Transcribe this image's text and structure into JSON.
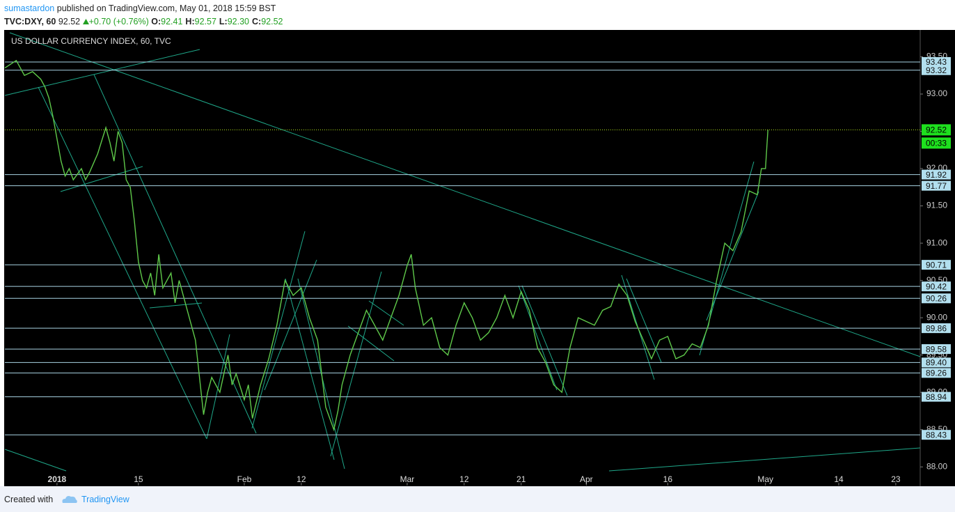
{
  "header": {
    "author": "sumastardon",
    "published": "published on TradingView.com, May 01, 2018 15:59 BST",
    "symbol": "TVC:DXY, 60",
    "last": "92.52",
    "change": "+0.70 (+0.76%)",
    "ohlc": [
      {
        "label": "O:",
        "value": "92.41"
      },
      {
        "label": "H:",
        "value": "92.57"
      },
      {
        "label": "L:",
        "value": "92.30"
      },
      {
        "label": "C:",
        "value": "92.52"
      }
    ]
  },
  "chart_data": {
    "type": "line",
    "title": "US DOLLAR CURRENCY INDEX, 60, TVC",
    "x": [
      -6.4,
      -5,
      -4,
      -3,
      -2,
      -1.5,
      -1,
      -0.5,
      0,
      0.5,
      1,
      1.5,
      2,
      3,
      3.5,
      4,
      5,
      6,
      6.5,
      7,
      7.5,
      8,
      8.5,
      9,
      9.5,
      10,
      10.5,
      11,
      11.5,
      12,
      12.5,
      13,
      14,
      14.5,
      15,
      16,
      17,
      17.5,
      18,
      18.5,
      19,
      20,
      21,
      21.5,
      22,
      23,
      23.5,
      24,
      25,
      26,
      27,
      28,
      29,
      30,
      31,
      32,
      33,
      34,
      34.5,
      35,
      36,
      37,
      38,
      39,
      40,
      41,
      42,
      43,
      43.5,
      44,
      45,
      46,
      47,
      48,
      49,
      50,
      51,
      52,
      53,
      54,
      55,
      56,
      57,
      58,
      59,
      60,
      61,
      62,
      63,
      64,
      65,
      66,
      67,
      68,
      69,
      70,
      71,
      72,
      73,
      74,
      75,
      76,
      77,
      78,
      79,
      80,
      81,
      82,
      83,
      84,
      85,
      86,
      86.5,
      87,
      87.3
    ],
    "series": [
      {
        "color": "#5fc94a",
        "values": [
          93.35,
          93.45,
          93.25,
          93.3,
          93.2,
          93.1,
          92.95,
          92.7,
          92.4,
          92.1,
          91.9,
          92.0,
          91.85,
          92.0,
          91.85,
          91.95,
          92.2,
          92.55,
          92.35,
          92.1,
          92.5,
          92.35,
          91.85,
          91.75,
          91.3,
          90.75,
          90.5,
          90.4,
          90.6,
          90.3,
          90.85,
          90.4,
          90.6,
          90.2,
          90.5,
          90.1,
          89.7,
          89.2,
          88.7,
          89.0,
          89.2,
          89.0,
          89.5,
          89.1,
          89.25,
          88.9,
          89.1,
          88.65,
          89.1,
          89.45,
          89.9,
          90.5,
          90.3,
          90.4,
          90.0,
          89.7,
          88.8,
          88.5,
          88.75,
          89.1,
          89.5,
          89.8,
          90.1,
          89.9,
          89.7,
          90.0,
          90.3,
          90.7,
          90.85,
          90.4,
          89.9,
          90.0,
          89.6,
          89.5,
          89.9,
          90.2,
          90.0,
          89.7,
          89.8,
          90.0,
          90.3,
          90.0,
          90.35,
          90.1,
          89.6,
          89.4,
          89.1,
          89.0,
          89.6,
          90.0,
          89.95,
          89.9,
          90.1,
          90.15,
          90.45,
          90.3,
          89.95,
          89.7,
          89.45,
          89.7,
          89.75,
          89.45,
          89.5,
          89.65,
          89.6,
          89.9,
          90.5,
          91.0,
          90.9,
          91.15,
          91.7,
          91.65,
          92.0,
          92.0,
          92.52
        ]
      }
    ],
    "xlim": [
      -6.4,
      106
    ],
    "xticks": [
      {
        "value": 0,
        "label": "2018"
      },
      {
        "value": 10,
        "label": "15"
      },
      {
        "value": 23,
        "label": "Feb"
      },
      {
        "value": 30,
        "label": "12"
      },
      {
        "value": 43,
        "label": "Mar"
      },
      {
        "value": 50,
        "label": "12"
      },
      {
        "value": 57,
        "label": "21"
      },
      {
        "value": 65,
        "label": "Apr"
      },
      {
        "value": 75,
        "label": "16"
      },
      {
        "value": 87,
        "label": "May"
      },
      {
        "value": 96,
        "label": "14"
      },
      {
        "value": 103,
        "label": "23"
      }
    ],
    "ylim": [
      87.75,
      93.85
    ],
    "yticks": [
      {
        "value": 88,
        "label": "88.00"
      },
      {
        "value": 88.5,
        "label": "88.50"
      },
      {
        "value": 89,
        "label": "89.00"
      },
      {
        "value": 89.5,
        "label": "89.50"
      },
      {
        "value": 90,
        "label": "90.00"
      },
      {
        "value": 90.5,
        "label": "90.50"
      },
      {
        "value": 91,
        "label": "91.00"
      },
      {
        "value": 91.5,
        "label": "91.50"
      },
      {
        "value": 92,
        "label": "92.00"
      },
      {
        "value": 92.5,
        "label": "92.50"
      },
      {
        "value": 93,
        "label": "93.00"
      },
      {
        "value": 93.5,
        "label": "93.50"
      }
    ],
    "levels": [
      93.43,
      93.32,
      91.92,
      91.77,
      90.71,
      90.42,
      90.26,
      89.86,
      89.58,
      {
        "value": 89.4,
        "label": "89.40"
      },
      89.26,
      88.94,
      88.43
    ],
    "last": 92.52,
    "countdown": "00:33"
  },
  "footer": {
    "created": "Created with",
    "brand": "TradingView"
  }
}
